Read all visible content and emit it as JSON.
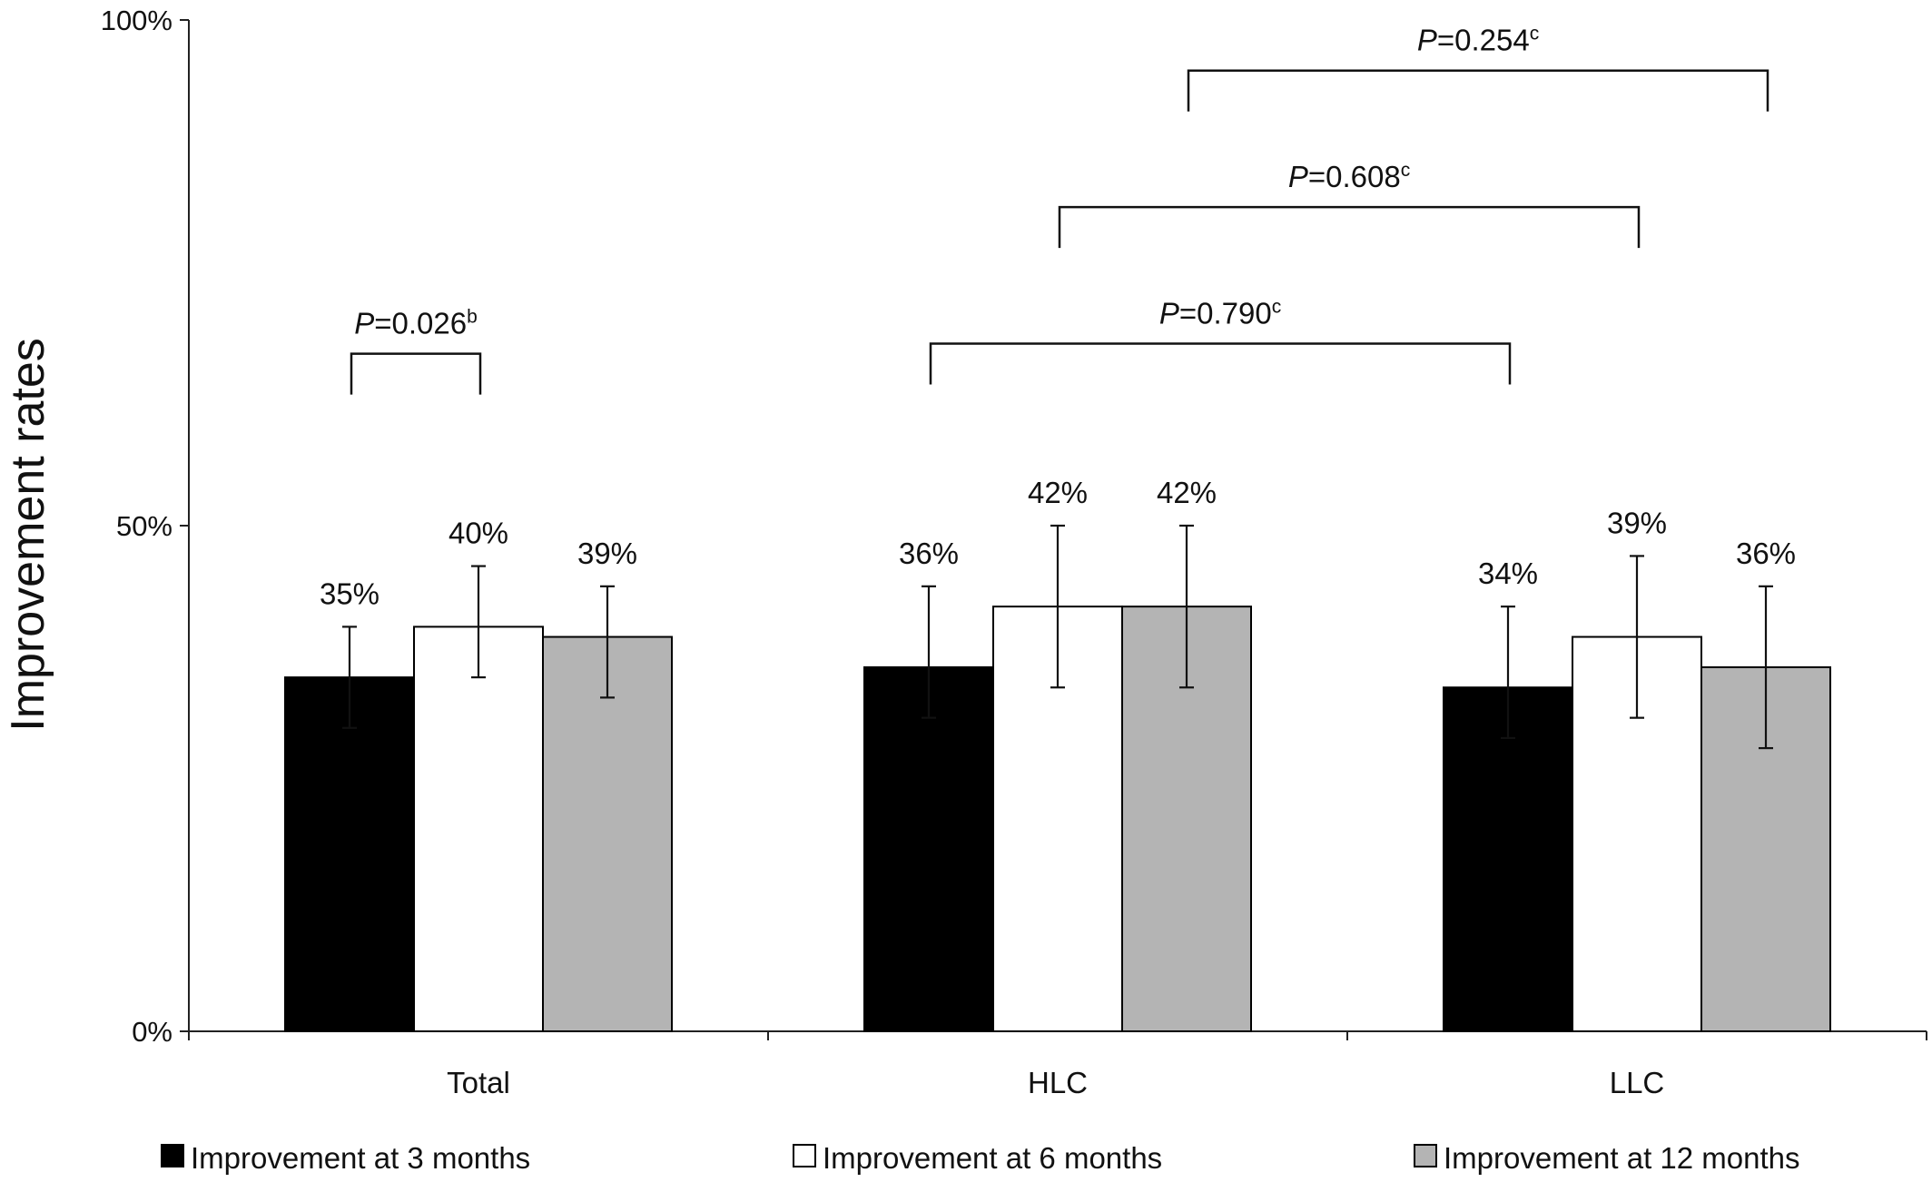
{
  "chart_data": {
    "type": "bar",
    "ylabel": "Improvement rates",
    "ylim": [
      0,
      100
    ],
    "yticks": [
      {
        "value": 0,
        "label": "0%"
      },
      {
        "value": 50,
        "label": "50%"
      },
      {
        "value": 100,
        "label": "100%"
      }
    ],
    "categories": [
      "Total",
      "HLC",
      "LLC"
    ],
    "series": [
      {
        "name": "Improvement at 3 months",
        "color": "#000000",
        "values": [
          35,
          36,
          34
        ],
        "labels": [
          "35%",
          "36%",
          "34%"
        ],
        "err_low": [
          30,
          31,
          29
        ],
        "err_high": [
          40,
          44,
          42
        ]
      },
      {
        "name": "Improvement at 6 months",
        "color": "#ffffff",
        "values": [
          40,
          42,
          39
        ],
        "labels": [
          "40%",
          "42%",
          "39%"
        ],
        "err_low": [
          35,
          34,
          31
        ],
        "err_high": [
          46,
          50,
          47
        ]
      },
      {
        "name": "Improvement at 12 months",
        "color": "#b4b4b4",
        "values": [
          39,
          42,
          36
        ],
        "labels": [
          "39%",
          "42%",
          "36%"
        ],
        "err_low": [
          33,
          34,
          28
        ],
        "err_high": [
          44,
          50,
          44
        ]
      }
    ],
    "comparisons": [
      {
        "p_prefix": "P",
        "p_value": "=0.026",
        "superscript": "b",
        "from": {
          "category": 0,
          "series": 0
        },
        "to": {
          "category": 0,
          "series": 1
        },
        "level": 67
      },
      {
        "p_prefix": "P",
        "p_value": "=0.790",
        "superscript": "c",
        "from": {
          "category": 1,
          "series": 0
        },
        "to": {
          "category": 2,
          "series": 0
        },
        "level": 68
      },
      {
        "p_prefix": "P",
        "p_value": "=0.608",
        "superscript": "c",
        "from": {
          "category": 1,
          "series": 1
        },
        "to": {
          "category": 2,
          "series": 1
        },
        "level": 81.5
      },
      {
        "p_prefix": "P",
        "p_value": "=0.254",
        "superscript": "c",
        "from": {
          "category": 1,
          "series": 2
        },
        "to": {
          "category": 2,
          "series": 2
        },
        "level": 95
      }
    ],
    "legend_position": "bottom",
    "grid": false
  }
}
